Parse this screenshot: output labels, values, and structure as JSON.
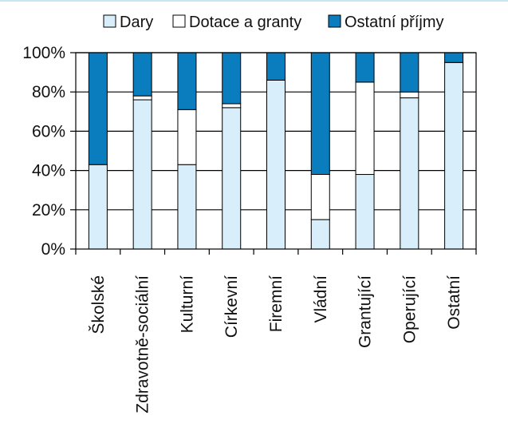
{
  "chart_data": {
    "type": "bar",
    "stacked": true,
    "percent": true,
    "categories": [
      "Školské",
      "Zdravotně-sociální",
      "Kulturní",
      "Církevní",
      "Firemní",
      "Vládní",
      "Grantující",
      "Operující",
      "Ostatní"
    ],
    "series": [
      {
        "name": "Dary",
        "color": "#d8eefa",
        "values": [
          43,
          76,
          43,
          72,
          86,
          15,
          38,
          77,
          95
        ]
      },
      {
        "name": "Dotace a granty",
        "color": "#ffffff",
        "values": [
          0,
          2,
          28,
          2,
          0,
          23,
          47,
          3,
          0
        ]
      },
      {
        "name": "Ostatní příjmy",
        "color": "#0a7dbf",
        "values": [
          57,
          22,
          29,
          26,
          14,
          62,
          15,
          20,
          5
        ]
      }
    ],
    "y_ticks": [
      "0%",
      "20%",
      "40%",
      "60%",
      "80%",
      "100%"
    ],
    "ylim": [
      0,
      100
    ],
    "grid": true,
    "legend_position": "top"
  }
}
